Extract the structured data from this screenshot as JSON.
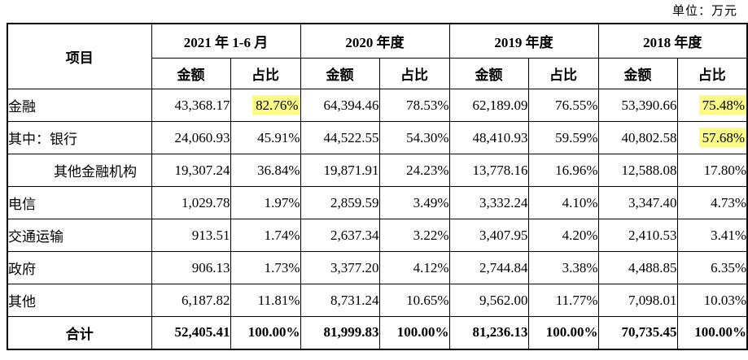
{
  "unit_label": "单位：万元",
  "table": {
    "item_header": "项目",
    "period_headers": [
      "2021 年 1-6 月",
      "2020 年度",
      "2019 年度",
      "2018 年度"
    ],
    "sub_headers": [
      "金额",
      "占比"
    ],
    "highlight_color": "#fbfb85",
    "rows": [
      {
        "label": "金融",
        "indent": false,
        "total": false,
        "values": [
          "43,368.17",
          "82.76%",
          "64,394.46",
          "78.53%",
          "62,189.09",
          "76.55%",
          "53,390.66",
          "75.48%"
        ],
        "highlight": [
          1,
          7
        ]
      },
      {
        "label": "其中：银行",
        "indent": false,
        "total": false,
        "values": [
          "24,060.93",
          "45.91%",
          "44,522.55",
          "54.30%",
          "48,410.93",
          "59.59%",
          "40,802.58",
          "57.68%"
        ],
        "highlight": [
          7
        ]
      },
      {
        "label": "其他金融机构",
        "indent": true,
        "total": false,
        "values": [
          "19,307.24",
          "36.84%",
          "19,871.91",
          "24.23%",
          "13,778.16",
          "16.96%",
          "12,588.08",
          "17.80%"
        ],
        "highlight": []
      },
      {
        "label": "电信",
        "indent": false,
        "total": false,
        "values": [
          "1,029.78",
          "1.97%",
          "2,859.59",
          "3.49%",
          "3,332.24",
          "4.10%",
          "3,347.40",
          "4.73%"
        ],
        "highlight": []
      },
      {
        "label": "交通运输",
        "indent": false,
        "total": false,
        "values": [
          "913.51",
          "1.74%",
          "2,637.34",
          "3.22%",
          "3,407.95",
          "4.20%",
          "2,410.53",
          "3.41%"
        ],
        "highlight": []
      },
      {
        "label": "政府",
        "indent": false,
        "total": false,
        "values": [
          "906.13",
          "1.73%",
          "3,377.20",
          "4.12%",
          "2,744.84",
          "3.38%",
          "4,488.85",
          "6.35%"
        ],
        "highlight": []
      },
      {
        "label": "其他",
        "indent": false,
        "total": false,
        "values": [
          "6,187.82",
          "11.81%",
          "8,731.24",
          "10.65%",
          "9,562.00",
          "11.77%",
          "7,098.01",
          "10.03%"
        ],
        "highlight": []
      },
      {
        "label": "合计",
        "indent": false,
        "total": true,
        "values": [
          "52,405.41",
          "100.00%",
          "81,999.83",
          "100.00%",
          "81,236.13",
          "100.00%",
          "70,735.45",
          "100.00%"
        ],
        "highlight": []
      }
    ]
  }
}
